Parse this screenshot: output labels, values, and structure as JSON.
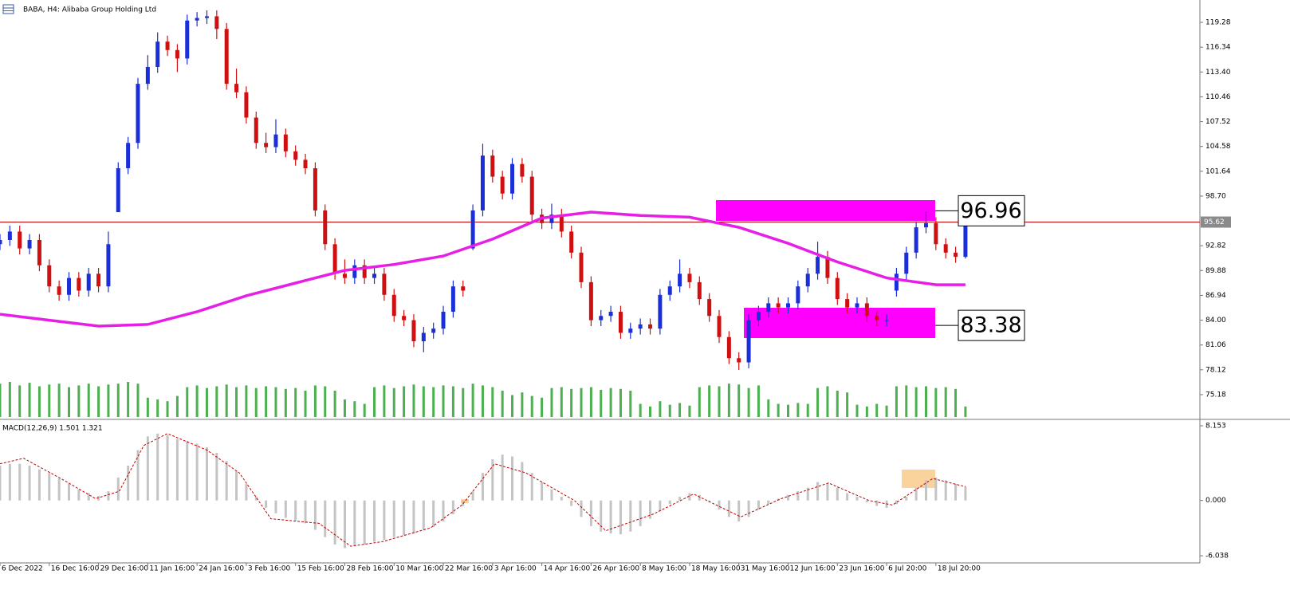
{
  "chart_data": [
    {
      "type": "candlestick",
      "title": "BABA, H4:  Alibaba Group Holding Ltd",
      "up_color": "#1a2fd8",
      "down_color": "#d01010",
      "open": [
        93,
        93.5,
        94.5,
        92.5,
        93.5,
        90.5,
        88,
        87,
        89,
        87.5,
        89.5,
        88,
        96.8,
        102,
        105,
        112,
        114,
        117,
        116,
        115,
        119.5,
        119.8,
        120,
        118.5,
        112,
        111,
        108,
        105,
        104.5,
        106,
        104,
        103,
        102,
        97,
        93,
        89.5,
        89,
        90.5,
        89,
        89.5,
        87,
        84.5,
        84,
        81.5,
        82.5,
        83,
        85,
        88,
        92.5,
        97,
        103.5,
        101,
        99,
        102.5,
        101,
        96.5,
        95.5,
        96.5,
        94.5,
        92,
        88.5,
        84,
        84.5,
        85,
        82.5,
        83,
        83.5,
        83,
        87,
        88,
        89.5,
        88.5,
        86.5,
        84.5,
        82,
        79.5,
        79,
        84,
        85,
        86,
        85.5,
        86,
        88,
        89.5,
        91.5,
        89,
        86.5,
        85.5,
        86,
        84.5,
        84,
        87.5,
        89.5,
        92,
        95,
        95.5,
        93,
        92,
        91.5
      ],
      "high": [
        94.2,
        95.2,
        95.2,
        94.2,
        94.2,
        91.2,
        88.7,
        89.7,
        89.7,
        90.2,
        90.2,
        94.5,
        102.7,
        105.7,
        112.7,
        115.4,
        118.1,
        117.7,
        116.7,
        120.2,
        120.5,
        120.7,
        120.7,
        119.2,
        113.8,
        111.7,
        108.7,
        106.2,
        107.8,
        106.7,
        104.7,
        103.7,
        102.7,
        97.7,
        93.7,
        91.2,
        91.2,
        91.2,
        90.2,
        90.2,
        87.7,
        85.2,
        84.7,
        83.2,
        83.7,
        85.7,
        88.7,
        88.7,
        97.7,
        104.9,
        104.2,
        101.7,
        103.2,
        103.2,
        101.7,
        97.2,
        97.8,
        97.2,
        95.2,
        92.7,
        89.2,
        85.2,
        85.7,
        85.7,
        83.7,
        84.2,
        84.2,
        87.7,
        88.7,
        91.2,
        90.2,
        89.2,
        87.2,
        85.2,
        82.7,
        80.2,
        84.7,
        85.7,
        86.7,
        86.7,
        86.7,
        88.7,
        90.2,
        93.3,
        92.2,
        89.7,
        87.2,
        86.7,
        86.7,
        85.2,
        84.7,
        90.2,
        92.7,
        95.7,
        96.9,
        96.2,
        93.7,
        92.7,
        97.2
      ],
      "low": [
        92.3,
        92.8,
        91.8,
        91.8,
        89.8,
        87.3,
        86.3,
        86.3,
        86.8,
        86.8,
        87.3,
        87.3,
        96.8,
        101.3,
        104.3,
        111.3,
        113.3,
        115.3,
        113.4,
        114.3,
        118.8,
        119.1,
        117.3,
        111.3,
        110.3,
        107.3,
        104.3,
        103.8,
        103.8,
        103.3,
        102.3,
        101.3,
        96.3,
        92.3,
        88.8,
        88.3,
        88.3,
        88.3,
        88.3,
        86.3,
        83.8,
        83.3,
        80.8,
        80.2,
        81.8,
        82.3,
        84.3,
        86.8,
        92.3,
        96.3,
        100.3,
        98.3,
        98.3,
        100.3,
        95.8,
        94.8,
        94.8,
        93.8,
        91.3,
        87.8,
        83.3,
        83.3,
        83.8,
        81.8,
        81.8,
        82.3,
        82.3,
        82.3,
        86.3,
        87.3,
        87.8,
        85.8,
        83.8,
        81.3,
        78.8,
        78.1,
        78.3,
        83.3,
        84.3,
        84.8,
        84.8,
        85.3,
        87.3,
        88.8,
        88.3,
        85.8,
        84.8,
        84.8,
        83.8,
        83.3,
        83.3,
        86.8,
        88.8,
        91.3,
        94.3,
        92.3,
        91.3,
        90.8,
        91.3
      ],
      "close": [
        93.5,
        94.5,
        92.5,
        93.5,
        90.5,
        88,
        87,
        89,
        87.5,
        89.5,
        88,
        93,
        102,
        105,
        112,
        114,
        117,
        116,
        115,
        119.5,
        119.8,
        120,
        118.5,
        112,
        111,
        108,
        105,
        104.5,
        106,
        104,
        103,
        102,
        97,
        93,
        89.5,
        89,
        90.5,
        89,
        89.5,
        87,
        84.5,
        84,
        81.5,
        82.5,
        83,
        85,
        88,
        87.5,
        97,
        103.5,
        101,
        99,
        102.5,
        101,
        96.5,
        95.5,
        96.5,
        94.5,
        92,
        88.5,
        84,
        84.5,
        85,
        82.5,
        83,
        83.5,
        83,
        87,
        88,
        89.5,
        88.5,
        86.5,
        84.5,
        82,
        79.5,
        79,
        84,
        85,
        86,
        85.5,
        86,
        88,
        89.5,
        91.5,
        89,
        86.5,
        85.5,
        86,
        84.5,
        84,
        84,
        89.5,
        92,
        95,
        95.5,
        93,
        92,
        91.5,
        96.5
      ],
      "volume": {
        "color": "#4caf50",
        "values": [
          38,
          40,
          36,
          39,
          35,
          37,
          38,
          34,
          36,
          38,
          35,
          37,
          38,
          40,
          38,
          22,
          20,
          18,
          24,
          34,
          36,
          33,
          35,
          37,
          34,
          36,
          33,
          35,
          34,
          32,
          33,
          30,
          36,
          35,
          30,
          20,
          18,
          15,
          34,
          36,
          33,
          35,
          37,
          35,
          34,
          36,
          35,
          33,
          38,
          36,
          34,
          30,
          25,
          28,
          24,
          22,
          33,
          34,
          32,
          33,
          34,
          31,
          33,
          32,
          30,
          15,
          12,
          18,
          14,
          16,
          13,
          34,
          36,
          35,
          38,
          37,
          33,
          36,
          20,
          15,
          14,
          16,
          15,
          33,
          35,
          30,
          28,
          14,
          12,
          15,
          13,
          35,
          36,
          34,
          35,
          33,
          34,
          32,
          12
        ]
      },
      "ma": {
        "color": "#e61ee6",
        "x": [
          0,
          5,
          10,
          15,
          20,
          25,
          30,
          35,
          40,
          45,
          50,
          55,
          60,
          65,
          70,
          75,
          80,
          85,
          90,
          95,
          98
        ],
        "values": [
          84.7,
          84.0,
          83.3,
          83.5,
          85.0,
          86.9,
          88.4,
          89.9,
          90.6,
          91.6,
          93.6,
          96.1,
          96.8,
          96.4,
          96.2,
          95.0,
          93.1,
          90.9,
          89.0,
          88.2,
          88.2
        ]
      },
      "price_line": 95.62,
      "price_line_color": "#c00000",
      "annotations": [
        96.96,
        83.38
      ],
      "xlim": [
        0,
        121.8
      ],
      "xticks": [
        {
          "value": 0,
          "label": "6 Dec 2022"
        },
        {
          "value": 5,
          "label": "16 Dec 16:00"
        },
        {
          "value": 10,
          "label": "29 Dec 16:00"
        },
        {
          "value": 15,
          "label": "11 Jan 16:00"
        },
        {
          "value": 20,
          "label": "24 Jan 16:00"
        },
        {
          "value": 25,
          "label": "3 Feb 16:00"
        },
        {
          "value": 30,
          "label": "15 Feb 16:00"
        },
        {
          "value": 35,
          "label": "28 Feb 16:00"
        },
        {
          "value": 40,
          "label": "10 Mar 16:00"
        },
        {
          "value": 45,
          "label": "22 Mar 16:00"
        },
        {
          "value": 50,
          "label": "3 Apr 16:00"
        },
        {
          "value": 55,
          "label": "14 Apr 16:00"
        },
        {
          "value": 60,
          "label": "26 Apr 16:00"
        },
        {
          "value": 65,
          "label": "8 May 16:00"
        },
        {
          "value": 70,
          "label": "18 May 16:00"
        },
        {
          "value": 75,
          "label": "31 May 16:00"
        },
        {
          "value": 80,
          "label": "12 Jun 16:00"
        },
        {
          "value": 85,
          "label": "23 Jun 16:00"
        },
        {
          "value": 90,
          "label": "6 Jul 20:00"
        },
        {
          "value": 95,
          "label": "18 Jul 20:00"
        }
      ],
      "ylim": [
        72.34,
        121.93
      ],
      "yticks": [
        119.28,
        116.34,
        {
          "value": 113.4,
          "label": "113.40"
        },
        110.46,
        107.52,
        104.58,
        101.64,
        {
          "value": 98.7,
          "label": "98.70"
        },
        92.82,
        89.88,
        86.94,
        {
          "value": 84,
          "label": "84.00"
        },
        81.06,
        78.12,
        75.18
      ]
    },
    {
      "type": "macd",
      "title": "MACD(12,26,9) 1.501 1.321",
      "histogram_color": "#c4c4c4",
      "signal_color": "#c00000",
      "histogram": [
        3.8,
        4.0,
        4.0,
        3.8,
        3.4,
        3.0,
        2.4,
        1.8,
        1.2,
        0.8,
        0.5,
        1.0,
        2.5,
        3.8,
        5.5,
        7.0,
        7.3,
        7.1,
        6.7,
        6.5,
        6.2,
        5.8,
        5.2,
        4.3,
        3.2,
        1.8,
        0.4,
        -0.8,
        -1.4,
        -1.9,
        -2.2,
        -2.5,
        -3.2,
        -4.0,
        -4.8,
        -5.2,
        -5.0,
        -4.8,
        -4.5,
        -4.3,
        -4.0,
        -3.8,
        -3.6,
        -3.2,
        -2.9,
        -2.3,
        -1.5,
        -0.6,
        1.0,
        3.0,
        4.5,
        5.0,
        4.8,
        4.2,
        3.0,
        2.0,
        1.2,
        0.4,
        -0.6,
        -1.8,
        -2.8,
        -3.4,
        -3.6,
        -3.7,
        -3.4,
        -2.8,
        -2.0,
        -1.2,
        -0.4,
        0.4,
        0.8,
        0.6,
        -0.2,
        -1.0,
        -1.8,
        -2.3,
        -1.8,
        -1.0,
        -0.4,
        0.2,
        0.6,
        1.0,
        1.4,
        2.0,
        1.9,
        1.4,
        0.8,
        0.4,
        -0.2,
        -0.6,
        -0.8,
        -0.4,
        0.4,
        1.4,
        2.2,
        2.5,
        2.2,
        1.8,
        1.5
      ],
      "signal": {
        "x": [
          0,
          2.4,
          6.5,
          9.7,
          12.1,
          14.6,
          17,
          21,
          24.3,
          27.5,
          32.4,
          35.6,
          38.8,
          43.7,
          46.9,
          50.2,
          53.4,
          58.3,
          61.5,
          66.3,
          70.4,
          75.2,
          79.3,
          84.1,
          88.2,
          90.6,
          94.7,
          98
        ],
        "values": [
          4.0,
          4.6,
          2.2,
          0.2,
          1.0,
          6.0,
          7.3,
          5.5,
          3.0,
          -2.0,
          -2.5,
          -5.0,
          -4.5,
          -3.0,
          -0.5,
          4.0,
          3.0,
          0,
          -3.3,
          -1.5,
          0.7,
          -1.8,
          0.2,
          1.9,
          0,
          -0.5,
          2.4,
          1.5
        ]
      },
      "ylim": [
        -6.73,
        8.76
      ],
      "yticks": [
        8.153,
        {
          "value": 0,
          "label": "0.000"
        },
        -6.038
      ]
    }
  ]
}
